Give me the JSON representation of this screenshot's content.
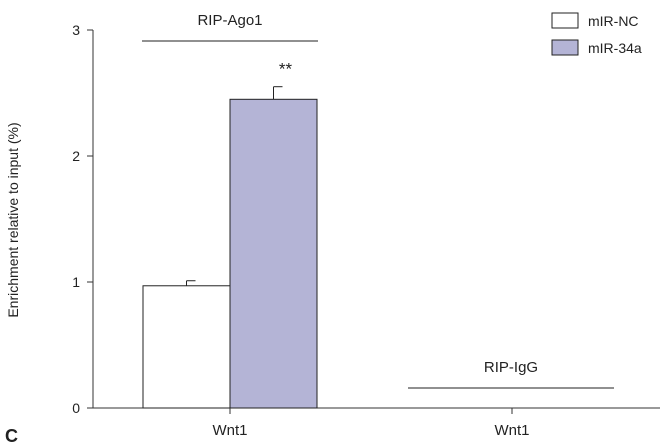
{
  "panel_label": "C",
  "chart_data": {
    "type": "bar",
    "ylabel": "Enrichment relative to input (%)",
    "ylim": [
      0,
      3
    ],
    "yticks": [
      0,
      1,
      2,
      3
    ],
    "grid": false,
    "legend_position": "top-right",
    "categories": [
      "Wnt1",
      "Wnt1"
    ],
    "groups": [
      {
        "label": "RIP-Ago1",
        "categories": [
          0
        ]
      },
      {
        "label": "RIP-IgG",
        "categories": [
          1
        ]
      }
    ],
    "series": [
      {
        "name": "mIR-NC",
        "color": "#ffffff",
        "values": [
          0.97,
          0
        ],
        "errors": [
          0.04,
          0
        ]
      },
      {
        "name": "mIR-34a",
        "color": "#b4b4d6",
        "values": [
          2.45,
          0
        ],
        "errors": [
          0.1,
          0
        ]
      }
    ],
    "annotations": [
      {
        "text": "**",
        "category": 0,
        "series": 1
      }
    ]
  }
}
